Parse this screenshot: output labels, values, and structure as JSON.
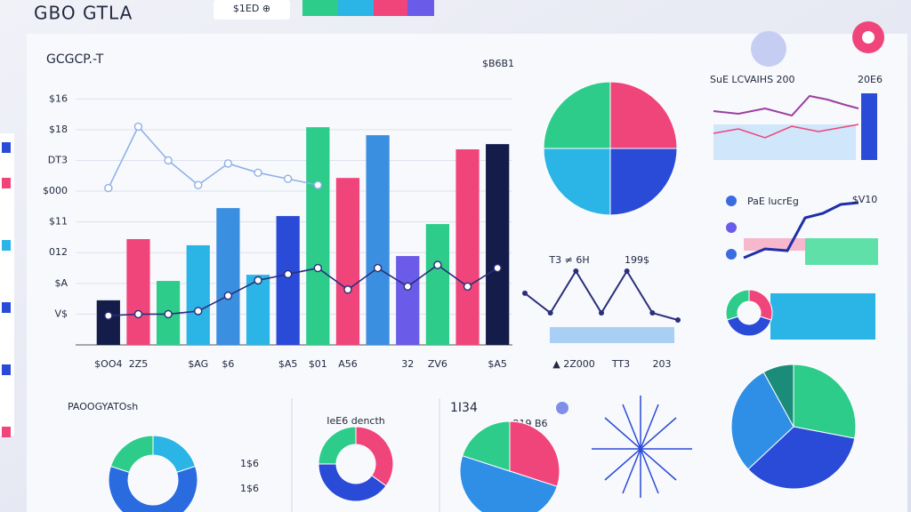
{
  "page": {
    "app_title": "GBO GTLA",
    "header_pill": "$1ED ⊕",
    "main_title": "GCGCP.-T",
    "main_value": "$B6B1",
    "line_note_left": "T3 ≠ 6H",
    "line_note_right": "199$",
    "line_labels": [
      "▲ 2Z000",
      "TT3",
      "203"
    ],
    "right_top_title": "SuE LCVAIHS 200",
    "right_top_value": "20E6",
    "right_mid_title": "PaE lucrEg",
    "right_mid_value": "$V10",
    "bottom_left_title": "PAOOGYATOsh",
    "bottom_left_values": [
      "1$6",
      "1$6"
    ],
    "bottom_center_title": "IeE6 dencth",
    "bottom_value": "1I34",
    "bottom_sub": "219 B6"
  },
  "chart_data": [
    {
      "type": "bar",
      "categories": [
        "$OO4",
        "2Z5",
        null,
        "$AG",
        "$6",
        null,
        "$A5",
        "$01",
        "A56",
        null,
        "32",
        "ZV6",
        null,
        "$A5"
      ],
      "values": [
        1.45,
        3.44,
        2.08,
        3.24,
        4.45,
        2.28,
        4.19,
        7.08,
        5.43,
        6.82,
        2.89,
        3.93,
        6.36,
        6.53
      ],
      "colors": [
        "#141c4a",
        "#f0457a",
        "#2ecc8a",
        "#2bb5e6",
        "#3b8fe0",
        "#2bb5e6",
        "#2a4bd8",
        "#2ecc8a",
        "#f0457a",
        "#3b8fe0",
        "#6a5ce8",
        "#2ecc8a",
        "#f0457a",
        "#141c4a"
      ],
      "series": [
        {
          "color": "#8fb1e8",
          "values": [
            5.1,
            7.1,
            6.0,
            5.2,
            5.9,
            5.6,
            5.4,
            5.2,
            null,
            null,
            null,
            null,
            null,
            null
          ]
        },
        {
          "color": "#2a2f7a",
          "values": [
            0.95,
            1.0,
            1.0,
            1.1,
            1.6,
            2.1,
            2.3,
            2.5,
            1.8,
            2.5,
            1.9,
            2.6,
            1.9,
            2.5
          ]
        }
      ],
      "ylim": [
        0,
        8.5
      ],
      "yticks": [
        {
          "value": 1,
          "label": "V$"
        },
        {
          "value": 2,
          "label": "$A"
        },
        {
          "value": 3,
          "label": "012"
        },
        {
          "value": 4,
          "label": "$11"
        },
        {
          "value": 5,
          "label": "$000"
        },
        {
          "value": 6,
          "label": "DT3"
        },
        {
          "value": 7,
          "label": "$18"
        },
        {
          "value": 8,
          "label": "$16"
        }
      ],
      "grid": true
    },
    {
      "type": "line",
      "values": [
        1.68,
        1.04,
        2.4,
        1.04,
        2.4,
        1.04,
        0.81
      ],
      "color": "#2a2f7a",
      "ylim": [
        0,
        8.5
      ]
    },
    {
      "type": "pie",
      "values": [
        25,
        25,
        25,
        25
      ],
      "colors": [
        "#f0457a",
        "#2a4bd8",
        "#2bb5e6",
        "#2ecc8a"
      ]
    },
    {
      "type": "pie",
      "values": [
        28,
        35,
        29,
        8
      ],
      "colors": [
        "#2ecc8a",
        "#2a4bd8",
        "#2f8fe6",
        "#1c8c7a"
      ]
    },
    {
      "type": "pie",
      "values": [
        35,
        40,
        25
      ],
      "colors": [
        "#f0457a",
        "#2a4bd8",
        "#2ecc8a"
      ]
    },
    {
      "type": "pie",
      "values": [
        30,
        50,
        20
      ],
      "colors": [
        "#f0457a",
        "#2f8fe6",
        "#2ecc8a"
      ]
    },
    {
      "type": "pie",
      "values": [
        30,
        40,
        30
      ],
      "colors": [
        "#f0457a",
        "#2a4bd8",
        "#2ecc8a"
      ]
    },
    {
      "type": "pie",
      "values": [
        20,
        60,
        20
      ],
      "colors": [
        "#2bb5e6",
        "#2a6be0",
        "#2ecc8a"
      ]
    }
  ]
}
